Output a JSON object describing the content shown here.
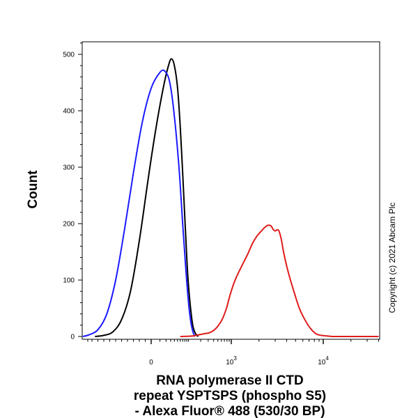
{
  "chart_data": {
    "type": "line",
    "title": "",
    "xlabel_lines": [
      "RNA polymerase II CTD",
      "repeat YSPTSPS (phospho S5)",
      "- Alexa Fluor® 488 (530/30 BP)"
    ],
    "ylabel": "Count",
    "x_scale": "biexponential",
    "x_ticks": [
      {
        "value": 0,
        "label": "0"
      },
      {
        "value": 1000,
        "label": "10",
        "exponent": "3"
      },
      {
        "value": 10000,
        "label": "10",
        "exponent": "4"
      }
    ],
    "y_ticks": [
      0,
      100,
      200,
      300,
      400,
      500
    ],
    "ylim": [
      0,
      520
    ],
    "grid": false,
    "legend": "none",
    "series": [
      {
        "color": "#000000",
        "points": [
          [
            -95,
            0
          ],
          [
            -80,
            2
          ],
          [
            -65,
            8
          ],
          [
            -50,
            30
          ],
          [
            -35,
            80
          ],
          [
            -20,
            170
          ],
          [
            -5,
            280
          ],
          [
            5,
            370
          ],
          [
            15,
            440
          ],
          [
            25,
            480
          ],
          [
            32,
            492
          ],
          [
            40,
            480
          ],
          [
            50,
            440
          ],
          [
            60,
            370
          ],
          [
            70,
            290
          ],
          [
            80,
            210
          ],
          [
            90,
            140
          ],
          [
            100,
            90
          ],
          [
            115,
            45
          ],
          [
            130,
            18
          ],
          [
            150,
            5
          ],
          [
            175,
            0
          ]
        ]
      },
      {
        "color": "#1a1aff",
        "points": [
          [
            -120,
            0
          ],
          [
            -105,
            3
          ],
          [
            -90,
            12
          ],
          [
            -75,
            40
          ],
          [
            -60,
            100
          ],
          [
            -45,
            190
          ],
          [
            -30,
            290
          ],
          [
            -15,
            380
          ],
          [
            0,
            440
          ],
          [
            10,
            468
          ],
          [
            18,
            470
          ],
          [
            28,
            450
          ],
          [
            40,
            390
          ],
          [
            55,
            300
          ],
          [
            70,
            200
          ],
          [
            85,
            120
          ],
          [
            100,
            60
          ],
          [
            115,
            25
          ],
          [
            130,
            8
          ],
          [
            145,
            0
          ]
        ]
      },
      {
        "color": "#e01a1a",
        "points": [
          [
            60,
            0
          ],
          [
            130,
            1
          ],
          [
            180,
            3
          ],
          [
            250,
            5
          ],
          [
            330,
            7
          ],
          [
            420,
            12
          ],
          [
            520,
            20
          ],
          [
            640,
            32
          ],
          [
            780,
            50
          ],
          [
            950,
            75
          ],
          [
            1100,
            100
          ],
          [
            1300,
            125
          ],
          [
            1500,
            145
          ],
          [
            1700,
            165
          ],
          [
            1900,
            178
          ],
          [
            2100,
            186
          ],
          [
            2300,
            193
          ],
          [
            2500,
            197
          ],
          [
            2700,
            196
          ],
          [
            2850,
            190
          ],
          [
            3000,
            187
          ],
          [
            3150,
            189
          ],
          [
            3300,
            187
          ],
          [
            3500,
            172
          ],
          [
            3700,
            150
          ],
          [
            4000,
            125
          ],
          [
            4400,
            100
          ],
          [
            4900,
            75
          ],
          [
            5500,
            50
          ],
          [
            6300,
            30
          ],
          [
            7200,
            15
          ],
          [
            8300,
            5
          ],
          [
            9500,
            2
          ],
          [
            11000,
            1
          ],
          [
            13000,
            0
          ],
          [
            20000,
            0
          ],
          [
            40000,
            0
          ]
        ]
      }
    ]
  },
  "copyright": "Copyright (c) 2021 Abcam Plc"
}
